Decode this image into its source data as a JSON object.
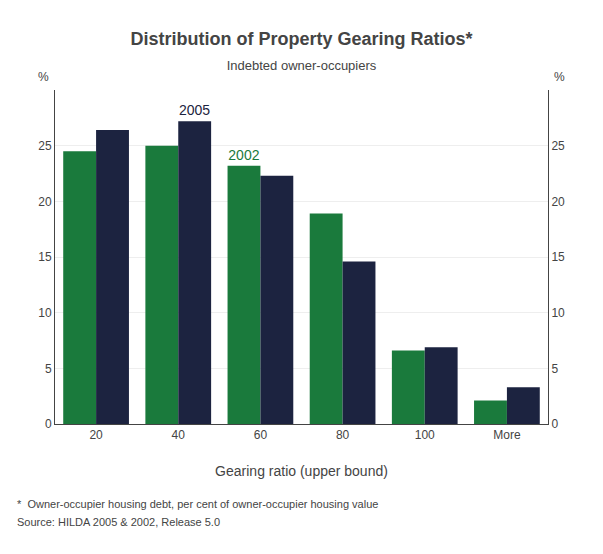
{
  "chart_data": {
    "type": "bar",
    "title": "Distribution of Property Gearing Ratios*",
    "subtitle": "Indebted owner-occupiers",
    "categories": [
      "20",
      "40",
      "60",
      "80",
      "100",
      "More"
    ],
    "xlabel": "Gearing ratio (upper bound)",
    "ylabel": "%",
    "y2label": "%",
    "series": [
      {
        "color": "#1a7a3c",
        "values": [
          24.5,
          25.0,
          23.2,
          18.9,
          6.6,
          2.1
        ]
      },
      {
        "color": "#1c2340",
        "values": [
          26.4,
          27.2,
          22.3,
          14.6,
          6.9,
          3.3
        ]
      }
    ],
    "annotations": [
      {
        "text": "2005",
        "category": "40",
        "series": 1,
        "color": "#1c2340"
      },
      {
        "text": "2002",
        "category": "60",
        "series": 0,
        "color": "#1a7a3c"
      }
    ],
    "ylim": [
      0,
      30
    ],
    "yticks": [
      0,
      5,
      10,
      15,
      20,
      25
    ],
    "y2lim": [
      0,
      30
    ],
    "y2ticks": [
      0,
      5,
      10,
      15,
      20,
      25
    ],
    "grid": true,
    "footnotes": [
      "*  Owner-occupier housing debt, per cent of owner-occupier housing value",
      "Source: HILDA 2005 & 2002, Release 5.0"
    ]
  }
}
